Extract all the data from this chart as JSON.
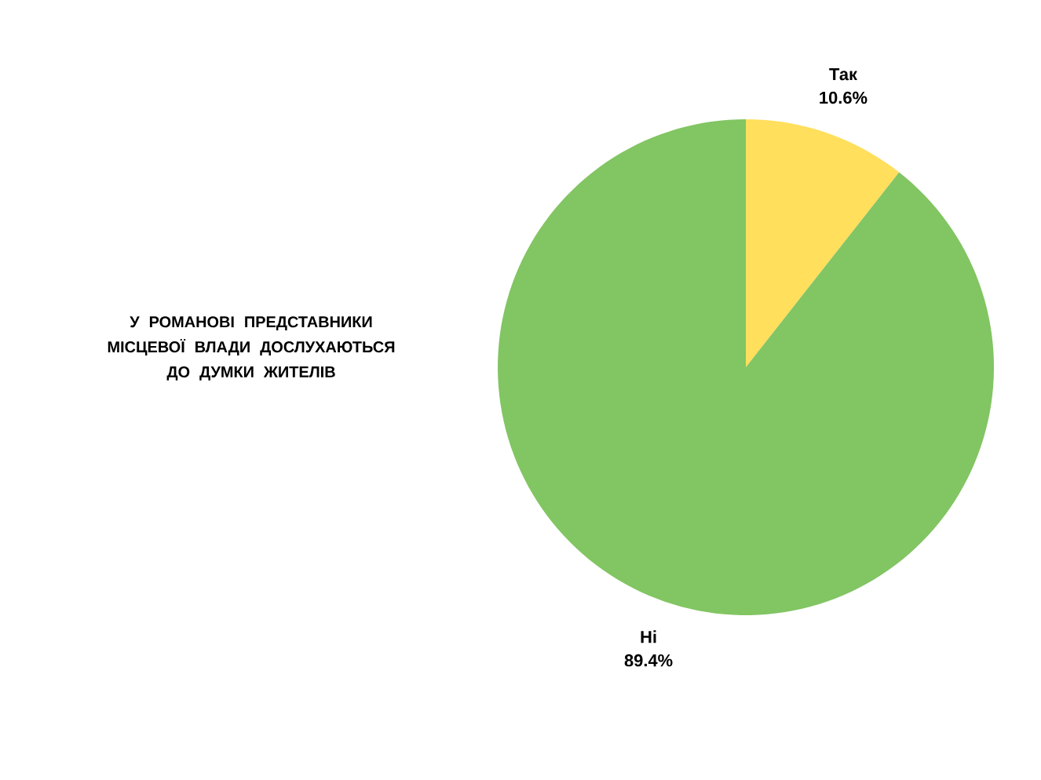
{
  "chart_data": {
    "type": "pie",
    "title": "У РОМАНОВІ ПРЕДСТАВНИКИ МІСЦЕВОЇ ВЛАДИ ДОСЛУХАЮТЬСЯ ДО ДУМКИ ЖИТЕЛІВ",
    "categories": [
      "Так",
      "Ні"
    ],
    "values": [
      10.6,
      89.4
    ],
    "colors": [
      "#ffdf5c",
      "#82c563"
    ],
    "value_labels": [
      "10.6%",
      "89.4%"
    ]
  }
}
